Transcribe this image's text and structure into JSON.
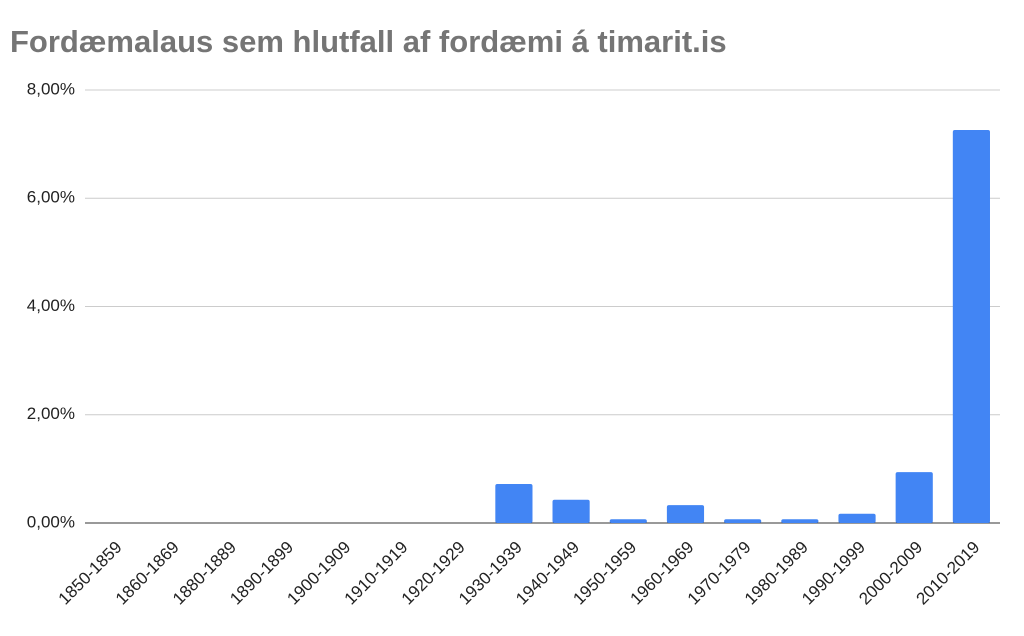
{
  "chart_data": {
    "type": "bar",
    "title": "Fordæmalaus sem hlutfall af fordæmi á timarit.is",
    "categories": [
      "1850-1859",
      "1860-1869",
      "1880-1889",
      "1890-1899",
      "1900-1909",
      "1910-1919",
      "1920-1929",
      "1930-1939",
      "1940-1949",
      "1950-1959",
      "1960-1969",
      "1970-1979",
      "1980-1989",
      "1990-1999",
      "2000-2009",
      "2010-2019"
    ],
    "values": [
      0,
      0,
      0,
      0,
      0,
      0,
      0,
      0.72,
      0.43,
      0.07,
      0.33,
      0.07,
      0.07,
      0.17,
      0.94,
      7.26
    ],
    "color": "#4285f4",
    "ylim": [
      0,
      8
    ],
    "yticks": [
      {
        "value": 0,
        "label": "0,00%"
      },
      {
        "value": 2,
        "label": "2,00%"
      },
      {
        "value": 4,
        "label": "4,00%"
      },
      {
        "value": 6,
        "label": "6,00%"
      },
      {
        "value": 8,
        "label": "8,00%"
      }
    ],
    "grid": true
  }
}
